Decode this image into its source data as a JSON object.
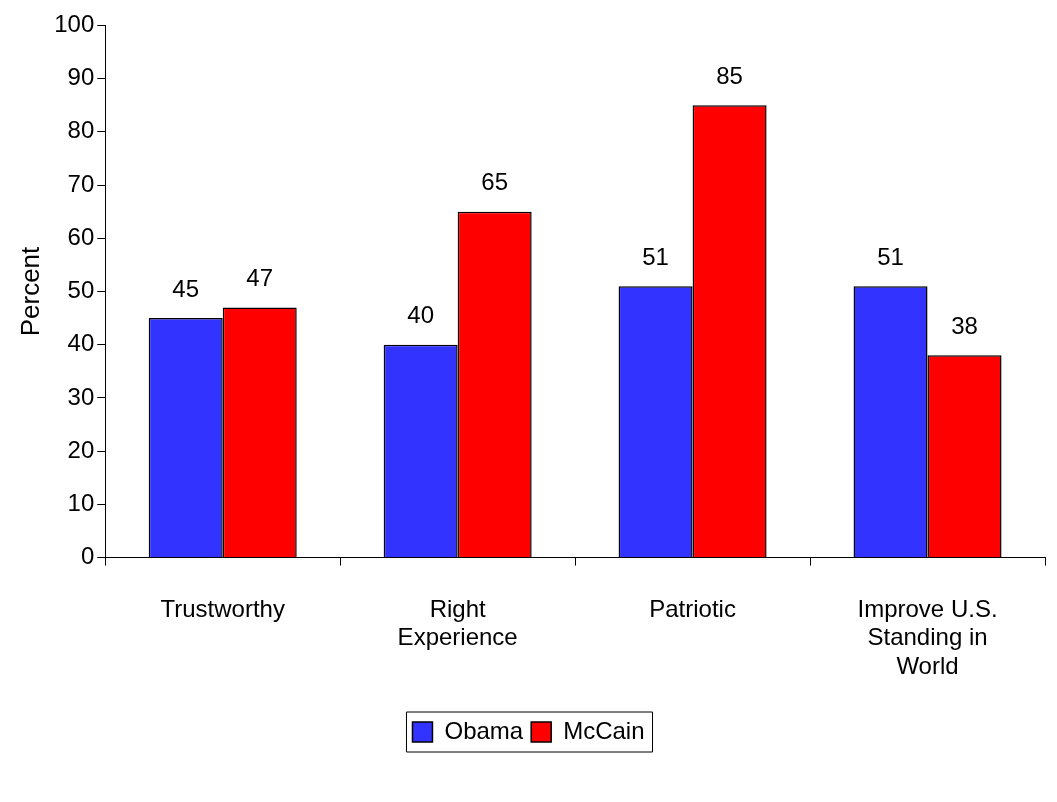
{
  "chart_data": {
    "type": "bar",
    "ylabel": "Percent",
    "categories": [
      "Trustworthy",
      "Right Experience",
      "Patriotic",
      "Improve U.S. Standing in World"
    ],
    "series": [
      {
        "name": "Obama",
        "color": "#3333ff",
        "values": [
          45,
          40,
          51,
          51
        ]
      },
      {
        "name": "McCain",
        "color": "#ff0000",
        "values": [
          47,
          65,
          85,
          38
        ]
      }
    ],
    "ylim": [
      0,
      100
    ],
    "yticks": [
      0,
      10,
      20,
      30,
      40,
      50,
      60,
      70,
      80,
      90,
      100
    ],
    "grid": false,
    "legend": "bottom",
    "data_labels": true
  }
}
